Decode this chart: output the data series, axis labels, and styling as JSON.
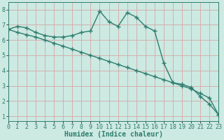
{
  "line1_x": [
    0,
    1,
    2,
    3,
    4,
    5,
    6,
    7,
    8,
    9,
    10,
    11,
    12,
    13,
    14,
    15,
    16,
    17,
    18,
    19,
    20,
    21,
    22,
    23
  ],
  "line1_y": [
    6.7,
    6.9,
    6.8,
    6.5,
    6.3,
    6.2,
    6.2,
    6.3,
    6.5,
    6.6,
    7.9,
    7.2,
    6.9,
    7.8,
    7.5,
    6.9,
    6.6,
    4.5,
    3.2,
    3.1,
    2.9,
    2.3,
    1.8,
    1.1
  ],
  "line2_x": [
    0,
    1,
    2,
    3,
    4,
    5,
    6,
    7,
    8,
    9,
    10,
    11,
    12,
    13,
    14,
    15,
    16,
    17,
    18,
    19,
    20,
    21,
    22,
    23
  ],
  "line2_y": [
    6.7,
    6.5,
    6.35,
    6.2,
    6.0,
    5.8,
    5.6,
    5.4,
    5.2,
    5.0,
    4.8,
    4.6,
    4.4,
    4.2,
    4.0,
    3.8,
    3.6,
    3.4,
    3.2,
    3.0,
    2.8,
    2.5,
    2.2,
    1.1
  ],
  "line_color": "#2d7d6d",
  "bg_color": "#cce9e2",
  "grid_color": "#d4a8a8",
  "xlabel": "Humidex (Indice chaleur)",
  "xlim": [
    0,
    23
  ],
  "ylim": [
    0.7,
    8.5
  ],
  "yticks": [
    1,
    2,
    3,
    4,
    5,
    6,
    7,
    8
  ],
  "xticks": [
    0,
    1,
    2,
    3,
    4,
    5,
    6,
    7,
    8,
    9,
    10,
    11,
    12,
    13,
    14,
    15,
    16,
    17,
    18,
    19,
    20,
    21,
    22,
    23
  ],
  "marker": "+",
  "marker_size": 5,
  "line_width": 1.0,
  "font_size": 6,
  "xlabel_fontsize": 7
}
